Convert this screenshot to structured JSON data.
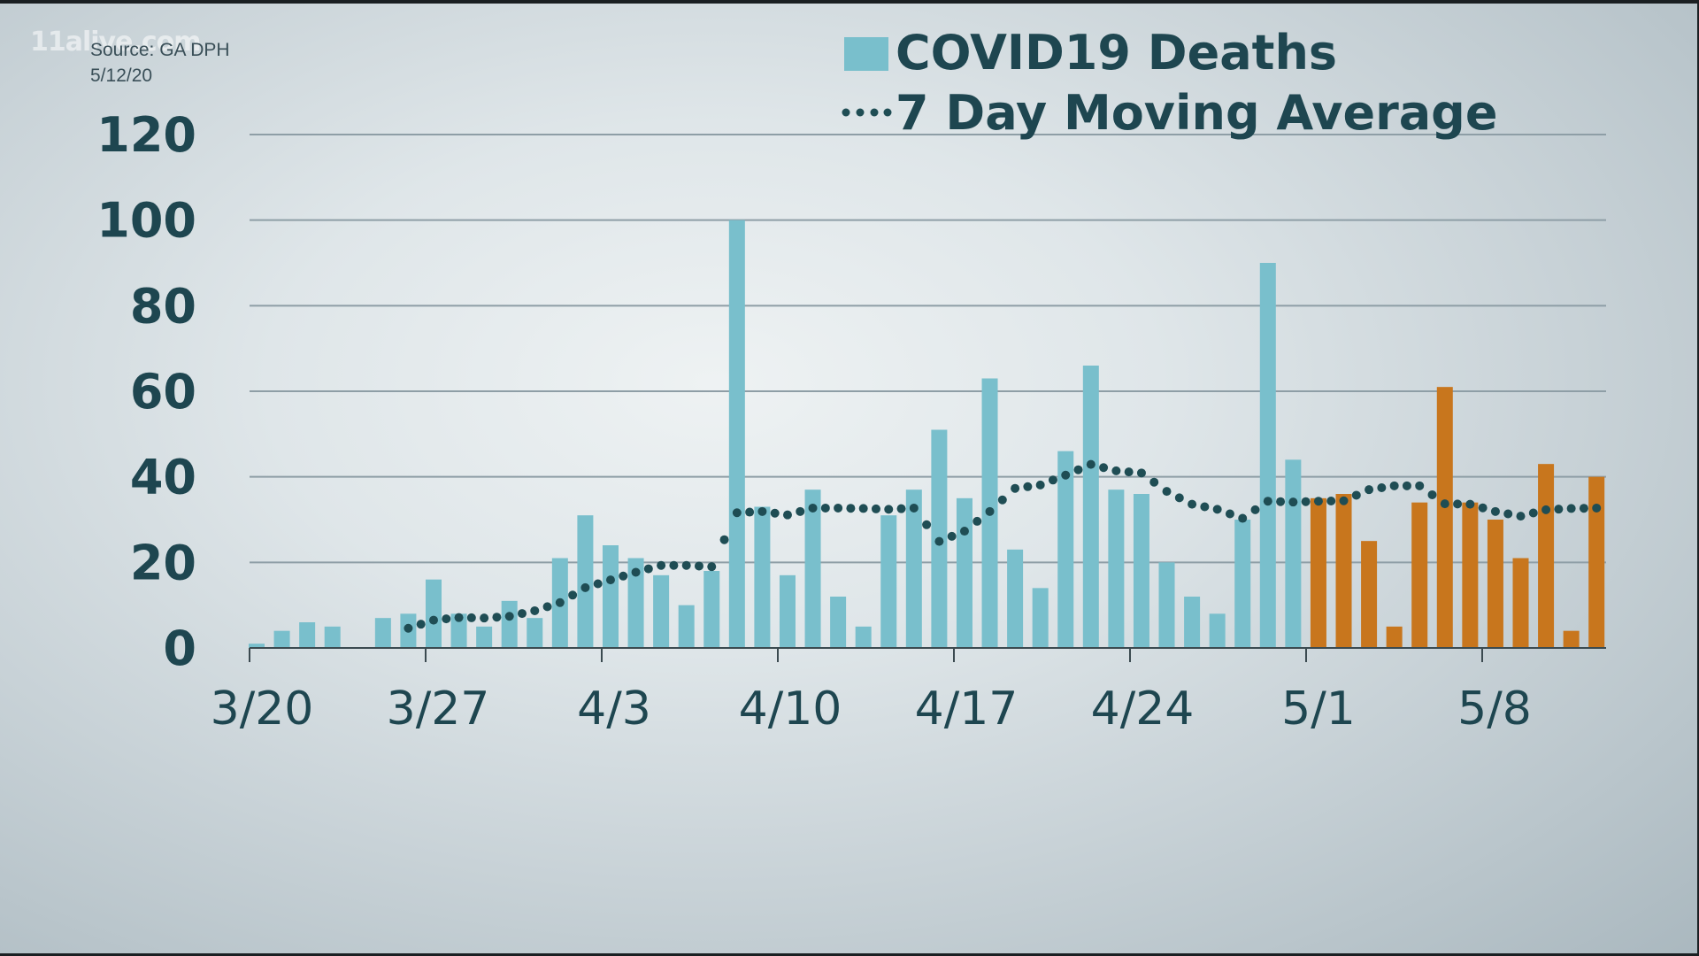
{
  "watermark": "11alive.com",
  "source": {
    "line1": "Source: GA DPH",
    "line2": "5/12/20"
  },
  "legend": {
    "bars_label": "COVID19 Deaths",
    "avg_label": "7 Day Moving Average"
  },
  "colors": {
    "bar_reported": "#79bfcc",
    "bar_recent": "#c8761d",
    "avg_dots": "#1f4d54",
    "gridline": "#8e9ea6",
    "text": "#1e4650"
  },
  "chart_data": {
    "type": "bar",
    "title": "",
    "xlabel": "",
    "ylabel": "",
    "ylim": [
      0,
      120
    ],
    "yticks": [
      0,
      20,
      40,
      60,
      80,
      100,
      120
    ],
    "xtick_labels": [
      "3/20",
      "3/27",
      "4/3",
      "4/10",
      "4/17",
      "4/24",
      "5/1",
      "5/8"
    ],
    "grid": true,
    "legend_position": "top-right",
    "categories": [
      "3/20",
      "3/21",
      "3/22",
      "3/23",
      "3/24",
      "3/25",
      "3/26",
      "3/27",
      "3/28",
      "3/29",
      "3/30",
      "3/31",
      "4/1",
      "4/2",
      "4/3",
      "4/4",
      "4/5",
      "4/6",
      "4/7",
      "4/8",
      "4/9",
      "4/10",
      "4/11",
      "4/12",
      "4/13",
      "4/14",
      "4/15",
      "4/16",
      "4/17",
      "4/18",
      "4/19",
      "4/20",
      "4/21",
      "4/22",
      "4/23",
      "4/24",
      "4/25",
      "4/26",
      "4/27",
      "4/28",
      "4/29",
      "4/30",
      "5/1",
      "5/2",
      "5/3",
      "5/4",
      "5/5",
      "5/6",
      "5/7",
      "5/8",
      "5/9",
      "5/10",
      "5/11",
      "5/12"
    ],
    "series": [
      {
        "name": "COVID19 Deaths",
        "type": "bar",
        "values": [
          1,
          4,
          6,
          5,
          0,
          7,
          8,
          16,
          8,
          5,
          11,
          7,
          21,
          31,
          24,
          21,
          17,
          10,
          18,
          100,
          33,
          17,
          37,
          12,
          5,
          31,
          37,
          51,
          35,
          63,
          23,
          14,
          46,
          66,
          37,
          36,
          20,
          12,
          8,
          30,
          90,
          44,
          35,
          36,
          25,
          5,
          34,
          61,
          34,
          30,
          21,
          43,
          4,
          40
        ],
        "recent_from_index": 42
      },
      {
        "name": "7 Day Moving Average",
        "type": "dotted-line",
        "values": [
          null,
          null,
          null,
          null,
          null,
          null,
          4.6,
          6.5,
          7.1,
          7.0,
          7.4,
          8.7,
          10.6,
          14.1,
          15.9,
          17.7,
          19.3,
          19.3,
          19.0,
          31.6,
          31.9,
          31.1,
          32.7,
          32.7,
          32.6,
          32.4,
          32.7,
          24.9,
          27.3,
          31.9,
          37.3,
          38.1,
          40.4,
          42.9,
          41.4,
          40.9,
          36.6,
          33.6,
          32.4,
          30.3,
          34.3,
          34.1,
          34.3,
          34.4,
          37.0,
          37.9,
          37.9,
          33.7,
          33.6,
          31.9,
          30.8,
          32.3,
          32.6,
          32.7
        ]
      }
    ]
  }
}
